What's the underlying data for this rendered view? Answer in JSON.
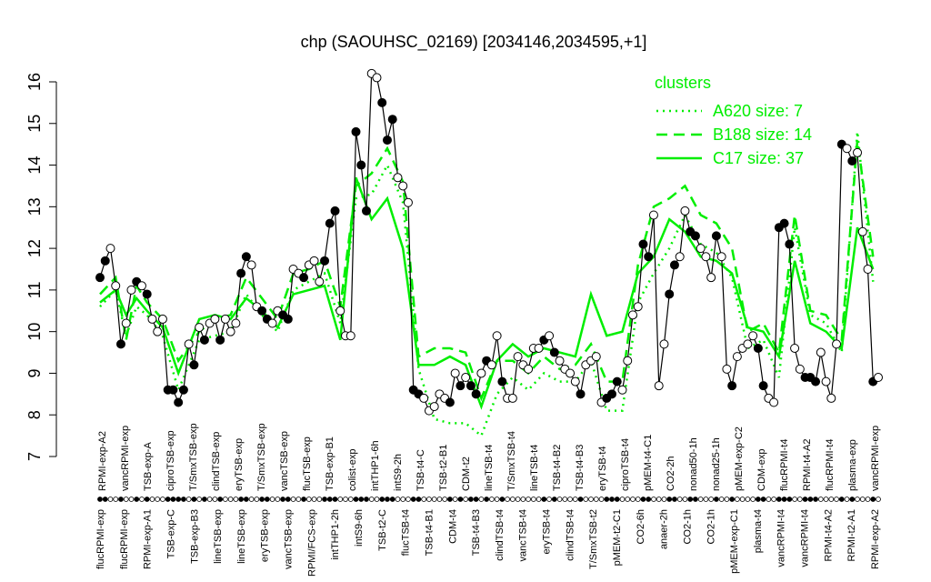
{
  "chart_data": {
    "type": "line",
    "title": "chp (SAOUHSC_02169) [2034146,2034595,+1]",
    "xlabel": "",
    "ylabel": "",
    "ylim": [
      7,
      16
    ],
    "yticks": [
      7,
      8,
      9,
      10,
      11,
      12,
      13,
      14,
      15,
      16
    ],
    "legend": {
      "title": "clusters",
      "position": "top-right",
      "entries": [
        "A620 size: 7",
        "B188 size: 14",
        "C17 size: 37"
      ]
    },
    "colors": {
      "cluster_lines": "#00ee00",
      "points": "#000000",
      "open_fill": "#ffffff"
    },
    "x_tick_labels_top": [
      "RPMI-exp-A2",
      "vancRPMI-exp",
      "TSB-exp-A",
      "ciproTSB-exp",
      "T/SmxTSB-exp",
      "clindTSB-exp",
      "eryTSB-exp",
      "T/SmxTSB-exp",
      "vancTSB-exp",
      "flucTSB-exp",
      "TSB-exp-B1",
      "colist-exp",
      "intTHP1-6h",
      "intS9-2h",
      "TSB-t4-C",
      "TSB-t2-B1",
      "CDM-t2",
      "lineTSB-t4",
      "T/SmxTSB-t4",
      "lineTSB-t4",
      "TSB-t4-B2",
      "TSB-t4-B3",
      "eryTSB-t4",
      "ciproTSB-t4",
      "pMEM-t4-C1",
      "CO2-2h",
      "nonad50-1h",
      "nonad25-1h",
      "pMEM-exp-C2",
      "CDM-exp",
      "flucRPMI-t4",
      "RPMI-t4-A2",
      "flucRPMI-t4",
      "plasma-exp",
      "vancRPMI-exp"
    ],
    "x_tick_labels_bottom": [
      "flucRPMI-exp",
      "flucRPMI-exp",
      "RPMI-exp-A1",
      "TSB-exp-C",
      "TSB-exp-B3",
      "lineTSB-exp",
      "lineTSB-exp",
      "eryTSB-exp",
      "vancTSB-exp",
      "RPMI/FCS-exp",
      "intTHP1-2h",
      "intS9-6h",
      "TSB-t2-C",
      "flucTSB-t4",
      "TSB-t4-B1",
      "CDM-t4",
      "TSB-t4-B3",
      "clindTSB-t4",
      "vancTSB-t4",
      "eryTSB-t4",
      "clindTSB-t4",
      "T/SmxTSB-t2",
      "pMEM-t2-C1",
      "CO2-6h",
      "anaer-2h",
      "CO2-1h",
      "CO2-1h",
      "pMEM-exp-C1",
      "plasma-t4",
      "vancRPMI-t4",
      "vancRPMI-t4",
      "RPMI-t4-A2",
      "RPMI-t2-A1",
      "RPMI-exp-A2"
    ],
    "series": [
      {
        "name": "data",
        "x": [
          1,
          2,
          3,
          4,
          5,
          6,
          7,
          8,
          9,
          10,
          11,
          12,
          13,
          14,
          15,
          16,
          17,
          18,
          19,
          20,
          21,
          22,
          23,
          24,
          25,
          26,
          27,
          28,
          29,
          30,
          31,
          32,
          33,
          34,
          35,
          36,
          37,
          38,
          39,
          40,
          41,
          42,
          43,
          44,
          45,
          46,
          47,
          48,
          49,
          50,
          51,
          52,
          53,
          54,
          55,
          56,
          57,
          58,
          59,
          60,
          61,
          62,
          63,
          64,
          65,
          66,
          67,
          68,
          69,
          70,
          71,
          72,
          73,
          74,
          75,
          76,
          77,
          78,
          79,
          80,
          81,
          82,
          83,
          84,
          85,
          86,
          87,
          88,
          89,
          90,
          91,
          92,
          93,
          94,
          95,
          96,
          97,
          98,
          99,
          100,
          101,
          102,
          103,
          104,
          105,
          106,
          107,
          108,
          109,
          110,
          111,
          112,
          113,
          114,
          115,
          116,
          117,
          118,
          119,
          120,
          121,
          122,
          123,
          124,
          125,
          126,
          127,
          128,
          129,
          130,
          131,
          132,
          133,
          134,
          135,
          136,
          137,
          138,
          139,
          140,
          141,
          142,
          143,
          144,
          145,
          146,
          147,
          148,
          149,
          150
        ],
        "y": [
          11.3,
          11.7,
          12.0,
          11.1,
          9.7,
          10.2,
          11.0,
          11.2,
          11.1,
          10.9,
          10.3,
          10.0,
          10.3,
          8.6,
          8.6,
          8.3,
          8.6,
          9.7,
          9.2,
          10.1,
          9.8,
          10.2,
          10.3,
          9.8,
          10.3,
          10.0,
          10.2,
          11.4,
          11.8,
          11.6,
          10.6,
          10.5,
          10.3,
          10.2,
          10.5,
          10.4,
          10.3,
          11.5,
          11.4,
          11.3,
          11.6,
          11.7,
          11.2,
          11.7,
          12.6,
          12.9,
          10.5,
          9.9,
          9.9,
          14.8,
          14.0,
          12.9,
          16.2,
          16.1,
          15.5,
          14.6,
          15.1,
          13.7,
          13.5,
          13.1,
          8.6,
          8.5,
          8.4,
          8.1,
          8.2,
          8.5,
          8.4,
          8.3,
          9.0,
          8.7,
          8.9,
          8.7,
          8.5,
          9.0,
          9.3,
          9.2,
          9.9,
          8.8,
          8.4,
          8.4,
          9.4,
          9.2,
          9.1,
          9.6,
          9.6,
          9.8,
          9.9,
          9.5,
          9.3,
          9.1,
          9.0,
          8.8,
          8.5,
          9.2,
          9.3,
          9.4,
          8.3,
          8.4,
          8.5,
          8.8,
          8.6,
          9.3,
          10.4,
          10.6,
          12.1,
          11.8,
          12.8,
          8.7,
          9.7,
          10.9,
          11.6,
          11.8,
          12.9,
          12.4,
          12.3,
          12.0,
          11.8,
          11.3,
          12.3,
          11.8,
          9.1,
          8.7,
          9.4,
          9.6,
          9.7,
          9.9,
          9.6,
          8.7,
          8.4,
          8.3,
          12.5,
          12.6,
          12.1,
          9.6,
          9.1,
          8.9,
          8.9,
          8.8,
          9.5,
          8.8,
          8.4,
          9.7,
          14.5,
          14.4,
          14.1,
          14.3,
          12.4,
          11.5,
          8.8,
          8.9
        ]
      },
      {
        "name": "A620 size: 7",
        "x": [
          1,
          4,
          6,
          8,
          10,
          13,
          16,
          20,
          23,
          26,
          29,
          32,
          35,
          38,
          41,
          44,
          47,
          50,
          53,
          56,
          59,
          62,
          65,
          68,
          71,
          74,
          77,
          80,
          83,
          86,
          89,
          92,
          95,
          98,
          101,
          104,
          107,
          110,
          113,
          116,
          119,
          122,
          125,
          128,
          131,
          134,
          137,
          140,
          143,
          146,
          149
        ],
        "y": [
          10.6,
          11.0,
          9.9,
          10.6,
          10.4,
          9.9,
          8.6,
          9.8,
          9.9,
          10.0,
          10.9,
          10.4,
          10.0,
          11.0,
          11.2,
          11.4,
          10.2,
          13.2,
          13.3,
          14.0,
          13.1,
          9.1,
          7.9,
          7.8,
          7.8,
          7.5,
          8.5,
          8.9,
          8.6,
          9.0,
          8.8,
          8.8,
          9.3,
          8.1,
          8.1,
          10.7,
          11.4,
          12.0,
          12.8,
          12.1,
          11.9,
          11.3,
          9.6,
          9.8,
          8.9,
          12.5,
          10.4,
          10.2,
          9.5,
          14.8,
          11.2
        ]
      },
      {
        "name": "B188 size: 14",
        "x": [
          1,
          4,
          6,
          8,
          10,
          13,
          16,
          20,
          23,
          26,
          29,
          32,
          35,
          38,
          41,
          44,
          47,
          50,
          53,
          56,
          59,
          62,
          65,
          68,
          71,
          74,
          77,
          80,
          83,
          86,
          89,
          92,
          95,
          98,
          101,
          104,
          107,
          110,
          113,
          116,
          119,
          122,
          125,
          128,
          131,
          134,
          137,
          140,
          143,
          146,
          149
        ],
        "y": [
          10.9,
          11.3,
          9.8,
          11.1,
          10.7,
          10.3,
          9.3,
          10.0,
          10.3,
          10.4,
          11.3,
          10.8,
          10.3,
          11.4,
          11.5,
          11.7,
          10.6,
          13.5,
          13.8,
          14.4,
          13.6,
          9.4,
          9.6,
          9.6,
          9.5,
          8.4,
          9.3,
          9.3,
          9.0,
          9.4,
          9.1,
          9.2,
          9.7,
          8.8,
          8.8,
          11.6,
          13.0,
          13.2,
          13.5,
          12.8,
          12.6,
          12.0,
          10.0,
          10.2,
          9.5,
          12.8,
          10.5,
          10.4,
          9.8,
          14.6,
          11.8
        ]
      },
      {
        "name": "C17 size: 37",
        "x": [
          1,
          4,
          6,
          8,
          10,
          13,
          16,
          20,
          23,
          26,
          29,
          32,
          35,
          38,
          41,
          44,
          47,
          50,
          53,
          56,
          59,
          62,
          65,
          68,
          71,
          74,
          77,
          80,
          83,
          86,
          89,
          92,
          95,
          98,
          101,
          104,
          107,
          110,
          113,
          116,
          119,
          122,
          125,
          128,
          131,
          134,
          137,
          140,
          143,
          146,
          149
        ],
        "y": [
          10.7,
          11.0,
          10.4,
          10.8,
          10.5,
          10.1,
          9.0,
          10.3,
          10.4,
          10.3,
          10.8,
          10.5,
          10.1,
          10.9,
          11.0,
          11.1,
          9.8,
          13.7,
          12.7,
          13.2,
          12.0,
          9.2,
          9.2,
          9.4,
          9.2,
          8.2,
          9.3,
          9.7,
          9.4,
          9.6,
          9.5,
          9.4,
          10.9,
          9.9,
          10.0,
          11.4,
          11.8,
          12.7,
          12.4,
          11.8,
          11.7,
          11.4,
          10.1,
          10.0,
          9.4,
          11.7,
          10.2,
          10.0,
          9.6,
          12.5,
          11.5
        ]
      }
    ],
    "filled_points": [
      1,
      2,
      5,
      8,
      10,
      14,
      15,
      16,
      17,
      19,
      21,
      24,
      28,
      29,
      32,
      33,
      36,
      37,
      40,
      44,
      45,
      46,
      50,
      51,
      52,
      55,
      56,
      57,
      61,
      62,
      68,
      70,
      72,
      73,
      75,
      78,
      86,
      88,
      93,
      98,
      99,
      100,
      105,
      106,
      110,
      111,
      114,
      115,
      119,
      122,
      127,
      128,
      131,
      132,
      133,
      136,
      137,
      138,
      143,
      145,
      149
    ]
  }
}
